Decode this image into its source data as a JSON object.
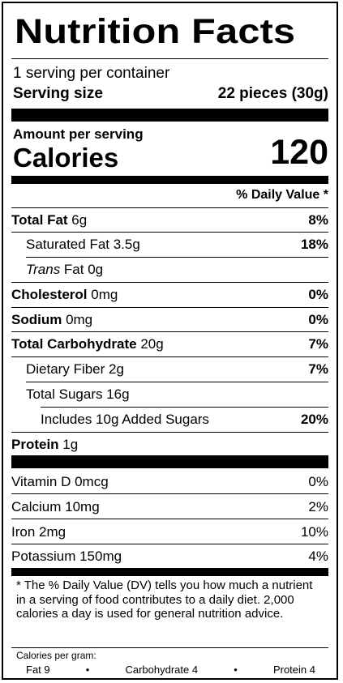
{
  "title": "Nutrition Facts",
  "servings_per_container": "1 serving per container",
  "serving_size": {
    "label": "Serving size",
    "value": "22 pieces (30g)"
  },
  "amount_per_serving": "Amount per serving",
  "calories": {
    "label": "Calories",
    "value": "120"
  },
  "daily_value_header": "% Daily Value *",
  "nutrients": [
    {
      "name": "Total Fat",
      "amount": " 6g",
      "dv": "8%"
    },
    {
      "name": "Saturated Fat 3.5g",
      "amount": "",
      "dv": "18%"
    },
    {
      "name": "Trans",
      "amount": " Fat 0g",
      "dv": ""
    },
    {
      "name": "Cholesterol",
      "amount": " 0mg",
      "dv": "0%"
    },
    {
      "name": "Sodium",
      "amount": " 0mg",
      "dv": "0%"
    },
    {
      "name": "Total Carbohydrate",
      "amount": " 20g",
      "dv": "7%"
    },
    {
      "name": "Dietary Fiber 2g",
      "amount": "",
      "dv": "7%"
    },
    {
      "name": "Total Sugars 16g",
      "amount": "",
      "dv": ""
    },
    {
      "name": "Includes 10g Added Sugars",
      "amount": "",
      "dv": "20%"
    },
    {
      "name": "Protein",
      "amount": " 1g",
      "dv": ""
    }
  ],
  "vitamins": [
    {
      "name": "Vitamin D 0mcg",
      "dv": "0%"
    },
    {
      "name": "Calcium 10mg",
      "dv": "2%"
    },
    {
      "name": "Iron 2mg",
      "dv": "10%"
    },
    {
      "name": "Potassium 150mg",
      "dv": "4%"
    }
  ],
  "footnote": "* The % Daily Value (DV) tells you how much a nutrient in a serving of food contributes to a daily diet. 2,000 calories a day is used for general nutrition advice.",
  "calories_per_gram": {
    "label": "Calories per gram:",
    "fat": "Fat 9",
    "carbohydrate": "Carbohydrate 4",
    "protein": "Protein 4",
    "separator": "•"
  }
}
